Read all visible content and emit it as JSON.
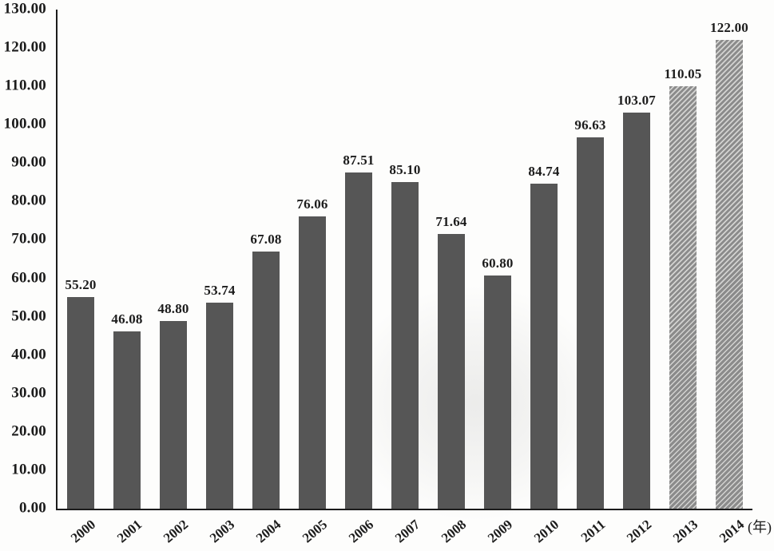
{
  "chart_data": {
    "type": "bar",
    "title": "",
    "xlabel": "(年)",
    "ylabel": "",
    "categories": [
      "2000",
      "2001",
      "2002",
      "2003",
      "2004",
      "2005",
      "2006",
      "2007",
      "2008",
      "2009",
      "2010",
      "2011",
      "2012",
      "2013",
      "2014"
    ],
    "values": [
      55.2,
      46.08,
      48.8,
      53.74,
      67.08,
      76.06,
      87.51,
      85.1,
      71.64,
      60.8,
      84.74,
      96.63,
      103.07,
      110.05,
      122.0
    ],
    "value_labels": [
      "55.20",
      "46.08",
      "48.80",
      "53.74",
      "67.08",
      "76.06",
      "87.51",
      "85.10",
      "71.64",
      "60.80",
      "84.74",
      "96.63",
      "103.07",
      "110.05",
      "122.00"
    ],
    "bar_styles": [
      "solid",
      "solid",
      "solid",
      "solid",
      "solid",
      "solid",
      "solid",
      "solid",
      "solid",
      "solid",
      "solid",
      "solid",
      "solid",
      "hatched",
      "hatched"
    ],
    "ylim": [
      0,
      130
    ],
    "ytick_step": 10,
    "ytick_labels": [
      "0.00",
      "10.00",
      "20.00",
      "30.00",
      "40.00",
      "50.00",
      "60.00",
      "70.00",
      "80.00",
      "90.00",
      "100.00",
      "110.00",
      "120.00",
      "130.00"
    ],
    "grid": false,
    "legend": null,
    "colors": {
      "solid_bar": "#565656",
      "hatched_bar_base": "#8b8b8b",
      "hatched_bar_line": "#d3d3d1",
      "axis": "#1c1c1c",
      "text": "#1c1c1c",
      "background": "#fdfdfc"
    }
  }
}
